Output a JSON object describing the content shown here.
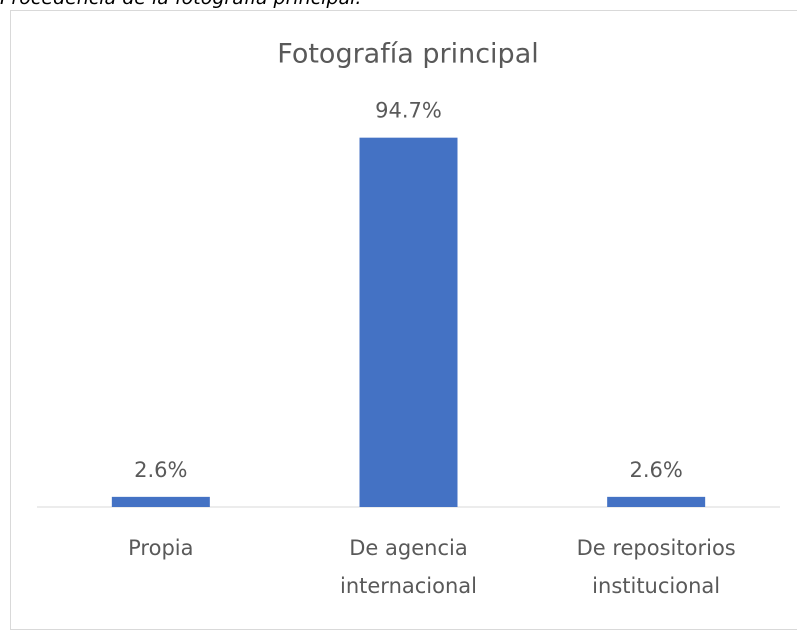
{
  "caption": "Procedencia de la fotografía principal.",
  "chart_data": {
    "type": "bar",
    "title": "Fotografía principal",
    "categories": [
      "Propia",
      "De agencia internacional",
      "De repositorios institucional"
    ],
    "values": [
      2.6,
      94.7,
      2.6
    ],
    "value_labels": [
      "2.6%",
      "94.7%",
      "2.6%"
    ],
    "color": "#4472c4"
  }
}
